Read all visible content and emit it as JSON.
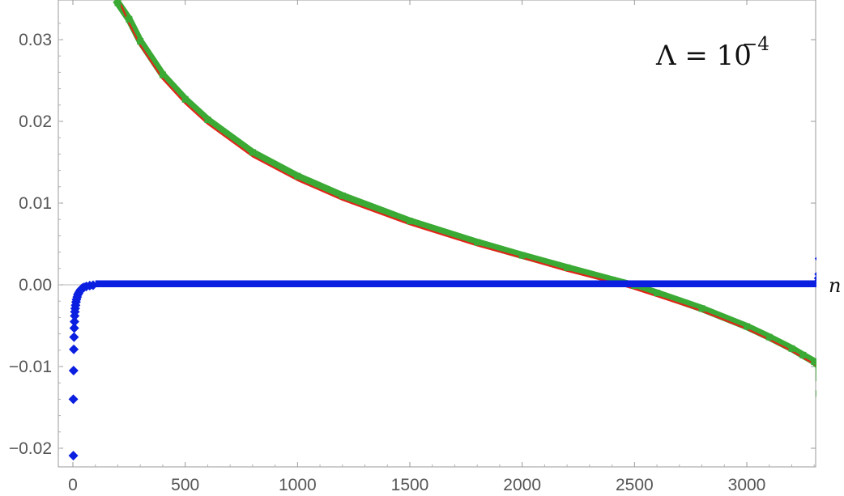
{
  "chart_data": {
    "type": "scatter",
    "title": "",
    "xlabel": "n",
    "ylabel": "",
    "annotation": {
      "base": "Λ = 10",
      "exponent": "−4"
    },
    "xlim": [
      -45,
      3380
    ],
    "ylim": [
      -0.0215,
      0.0345
    ],
    "x_ticks": [
      0,
      500,
      1000,
      1500,
      2000,
      2500,
      3000
    ],
    "x_tick_labels": [
      "0",
      "500",
      "1000",
      "1500",
      "2000",
      "2500",
      "3000"
    ],
    "y_ticks": [
      0.03,
      0.02,
      0.01,
      0.0,
      -0.01,
      -0.02
    ],
    "y_tick_labels": [
      "0.03",
      "0.02",
      "0.01",
      "0.00",
      "−0.01",
      "−0.02"
    ],
    "grid": false,
    "legend": "none",
    "series": [
      {
        "marker": "line",
        "color": "#e0261b",
        "x": [
          210,
          250,
          300,
          400,
          500,
          600,
          800,
          1000,
          1200,
          1500,
          1800,
          2000,
          2200,
          2400,
          2500,
          2600,
          2800,
          3000,
          3100,
          3200,
          3250,
          3300,
          3320
        ],
        "y": [
          0.0345,
          0.032,
          0.0293,
          0.0252,
          0.0222,
          0.0197,
          0.0157,
          0.0128,
          0.0104,
          0.0074,
          0.0048,
          0.0033,
          0.0017,
          0.0003,
          -0.0005,
          -0.0014,
          -0.0032,
          -0.0054,
          -0.0067,
          -0.0081,
          -0.0089,
          -0.0097,
          -0.0101
        ]
      },
      {
        "marker": "square",
        "color": "#3aaa35",
        "x": [
          200,
          250,
          300,
          400,
          500,
          600,
          800,
          1000,
          1200,
          1500,
          1800,
          2000,
          2200,
          2400,
          2500,
          2600,
          2800,
          3000,
          3100,
          3200,
          3250,
          3300,
          3320
        ],
        "y": [
          0.0345,
          0.0325,
          0.0298,
          0.0257,
          0.0227,
          0.0202,
          0.0162,
          0.0133,
          0.0109,
          0.0078,
          0.0052,
          0.0036,
          0.0021,
          0.0006,
          -0.0001,
          -0.001,
          -0.0029,
          -0.0051,
          -0.0064,
          -0.0078,
          -0.0086,
          -0.0094,
          -0.0099
        ],
        "extra_points": [
          [
            3322,
            -0.0103
          ],
          [
            3322,
            -0.0108
          ],
          [
            3322,
            -0.0114
          ],
          [
            3322,
            -0.0133
          ]
        ]
      },
      {
        "marker": "diamond",
        "color": "#0a1fe0",
        "points": [
          [
            2,
            -0.0209
          ],
          [
            2,
            -0.014
          ],
          [
            3,
            -0.0105
          ],
          [
            4,
            -0.0079
          ],
          [
            5,
            -0.0064
          ],
          [
            6,
            -0.0053
          ],
          [
            7,
            -0.0045
          ],
          [
            8,
            -0.0038
          ],
          [
            9,
            -0.0033
          ],
          [
            10,
            -0.0029
          ],
          [
            12,
            -0.0025
          ],
          [
            14,
            -0.0021
          ],
          [
            16,
            -0.0018
          ],
          [
            19,
            -0.0015
          ],
          [
            22,
            -0.0012
          ],
          [
            26,
            -0.001
          ],
          [
            30,
            -0.0008
          ],
          [
            35,
            -0.0006
          ],
          [
            42,
            -0.0004
          ],
          [
            50,
            -0.0003
          ],
          [
            60,
            -0.0002
          ],
          [
            75,
            -0.0001
          ],
          [
            90,
            -5e-05
          ],
          [
            3318,
            0.0004
          ],
          [
            3320,
            0.0008
          ],
          [
            3322,
            0.0013
          ],
          [
            3324,
            0.0032
          ]
        ],
        "flat_band": {
          "x_from": 100,
          "x_to": 3310,
          "y": 0.0,
          "y_upper": 0.00025
        }
      }
    ]
  }
}
